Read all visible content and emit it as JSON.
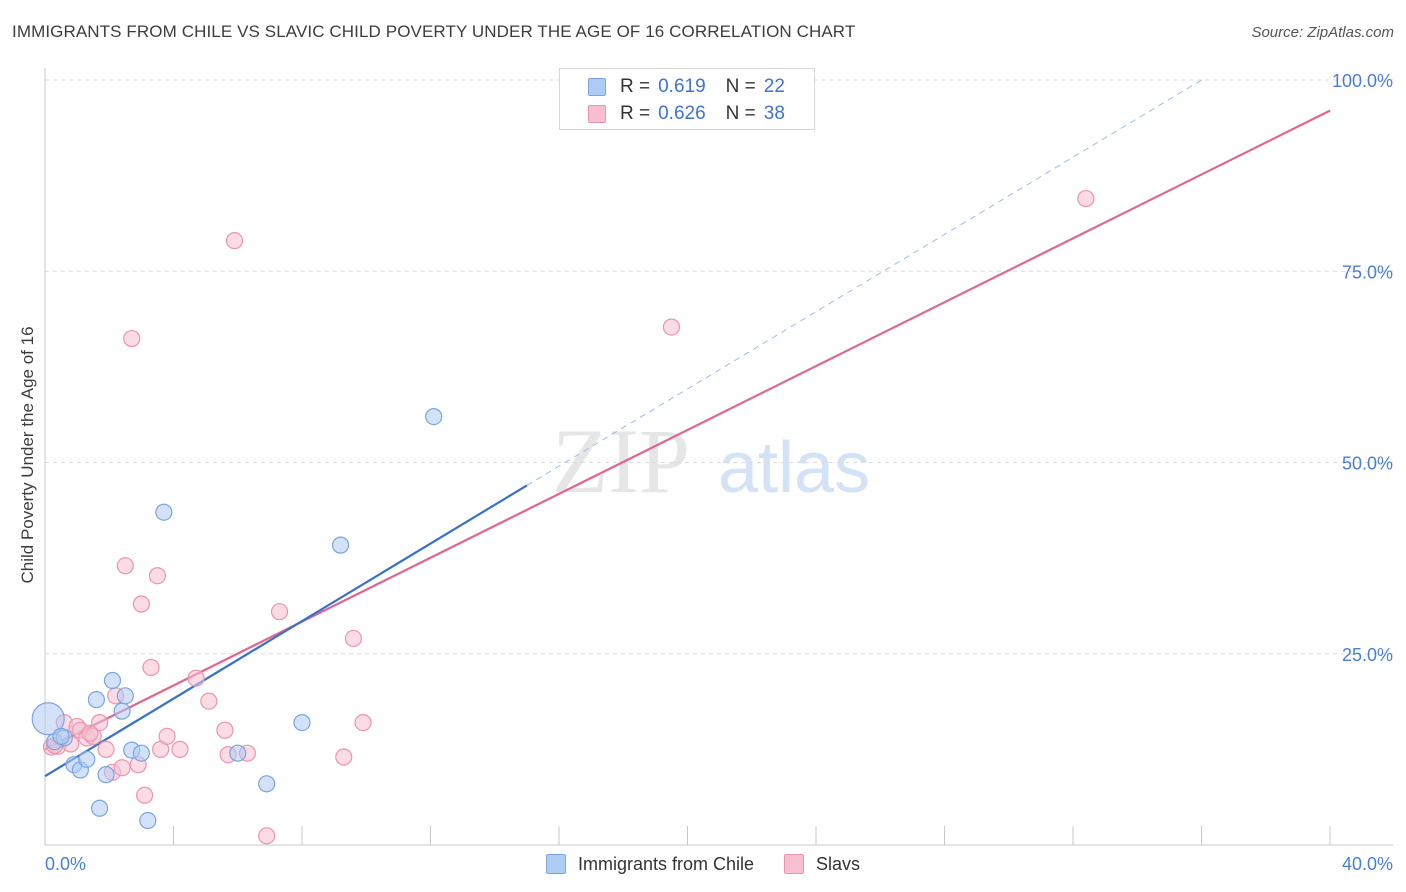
{
  "title": "IMMIGRANTS FROM CHILE VS SLAVIC CHILD POVERTY UNDER THE AGE OF 16 CORRELATION CHART",
  "source": "Source: ZipAtlas.com",
  "watermark": {
    "part1": "ZIP",
    "part2": "atlas"
  },
  "colors": {
    "blue_fill": "#aecbf2",
    "blue_stroke": "#7ba4e0",
    "blue_line": "#3672cc",
    "pink_fill": "#f7bfd0",
    "pink_stroke": "#ee93b1",
    "pink_line": "#e06690",
    "tick_text": "#4a7fd4",
    "grid": "#dcdcdc"
  },
  "legend": [
    {
      "r_label": "R =",
      "r_value": "0.619",
      "n_label": "N =",
      "n_value": "22"
    },
    {
      "r_label": "R =",
      "r_value": "0.626",
      "n_label": "N =",
      "n_value": "38"
    }
  ],
  "chart_data": {
    "type": "scatter",
    "title": "IMMIGRANTS FROM CHILE VS SLAVIC CHILD POVERTY UNDER THE AGE OF 16 CORRELATION CHART",
    "xlabel": "",
    "ylabel": "Child Poverty Under the Age of 16",
    "xlim": [
      0,
      40
    ],
    "ylim": [
      0,
      100
    ],
    "x_tick_labels": [
      "0.0%",
      "40.0%"
    ],
    "y_ticks": [
      25,
      50,
      75,
      100
    ],
    "y_tick_labels": [
      "25.0%",
      "50.0%",
      "75.0%",
      "100.0%"
    ],
    "grid": true,
    "legend_position": "top-center",
    "series": [
      {
        "name": "Immigrants from Chile",
        "color": "blue",
        "trendline": {
          "x": [
            0,
            15
          ],
          "y": [
            9,
            47
          ]
        },
        "trend_extension": {
          "x": [
            15,
            36
          ],
          "y": [
            47,
            100
          ]
        },
        "points": [
          {
            "x": 0.1,
            "y": 16.5,
            "big": true
          },
          {
            "x": 0.3,
            "y": 13.5
          },
          {
            "x": 0.6,
            "y": 14.0
          },
          {
            "x": 0.9,
            "y": 10.5
          },
          {
            "x": 1.1,
            "y": 9.8
          },
          {
            "x": 1.3,
            "y": 11.2
          },
          {
            "x": 1.6,
            "y": 19.0
          },
          {
            "x": 1.7,
            "y": 4.8
          },
          {
            "x": 1.9,
            "y": 9.2
          },
          {
            "x": 2.1,
            "y": 21.5
          },
          {
            "x": 2.4,
            "y": 17.5
          },
          {
            "x": 2.5,
            "y": 19.5
          },
          {
            "x": 2.7,
            "y": 12.4
          },
          {
            "x": 3.0,
            "y": 12.0
          },
          {
            "x": 3.2,
            "y": 3.2
          },
          {
            "x": 3.7,
            "y": 43.5
          },
          {
            "x": 6.0,
            "y": 12.0
          },
          {
            "x": 6.9,
            "y": 8.0
          },
          {
            "x": 8.0,
            "y": 16.0
          },
          {
            "x": 9.2,
            "y": 39.2
          },
          {
            "x": 12.1,
            "y": 56.0
          },
          {
            "x": 0.5,
            "y": 14.2
          }
        ]
      },
      {
        "name": "Slavs",
        "color": "pink",
        "trendline": {
          "x": [
            0,
            40
          ],
          "y": [
            12.5,
            96
          ]
        },
        "points": [
          {
            "x": 0.2,
            "y": 12.8
          },
          {
            "x": 0.4,
            "y": 12.9
          },
          {
            "x": 0.6,
            "y": 16.0
          },
          {
            "x": 0.8,
            "y": 13.2
          },
          {
            "x": 1.0,
            "y": 15.5
          },
          {
            "x": 1.1,
            "y": 15.0
          },
          {
            "x": 1.3,
            "y": 14.0
          },
          {
            "x": 1.5,
            "y": 14.2
          },
          {
            "x": 1.7,
            "y": 16.0
          },
          {
            "x": 1.9,
            "y": 12.5
          },
          {
            "x": 2.1,
            "y": 9.5
          },
          {
            "x": 2.2,
            "y": 19.5
          },
          {
            "x": 2.4,
            "y": 10.1
          },
          {
            "x": 2.5,
            "y": 36.5
          },
          {
            "x": 2.7,
            "y": 66.2
          },
          {
            "x": 2.9,
            "y": 10.5
          },
          {
            "x": 3.0,
            "y": 31.5
          },
          {
            "x": 3.1,
            "y": 6.5
          },
          {
            "x": 3.3,
            "y": 23.2
          },
          {
            "x": 3.5,
            "y": 35.2
          },
          {
            "x": 3.6,
            "y": 12.5
          },
          {
            "x": 3.8,
            "y": 14.2
          },
          {
            "x": 4.2,
            "y": 12.5
          },
          {
            "x": 4.7,
            "y": 21.8
          },
          {
            "x": 5.1,
            "y": 18.8
          },
          {
            "x": 5.6,
            "y": 15.0
          },
          {
            "x": 5.7,
            "y": 11.8
          },
          {
            "x": 5.9,
            "y": 79.0
          },
          {
            "x": 6.3,
            "y": 12.0
          },
          {
            "x": 6.9,
            "y": 1.2
          },
          {
            "x": 7.3,
            "y": 30.5
          },
          {
            "x": 9.3,
            "y": 11.5
          },
          {
            "x": 9.6,
            "y": 27.0
          },
          {
            "x": 9.9,
            "y": 16.0
          },
          {
            "x": 19.5,
            "y": 67.7
          },
          {
            "x": 32.4,
            "y": 84.5
          },
          {
            "x": 1.4,
            "y": 14.6
          },
          {
            "x": 0.3,
            "y": 13.0
          }
        ]
      }
    ]
  }
}
